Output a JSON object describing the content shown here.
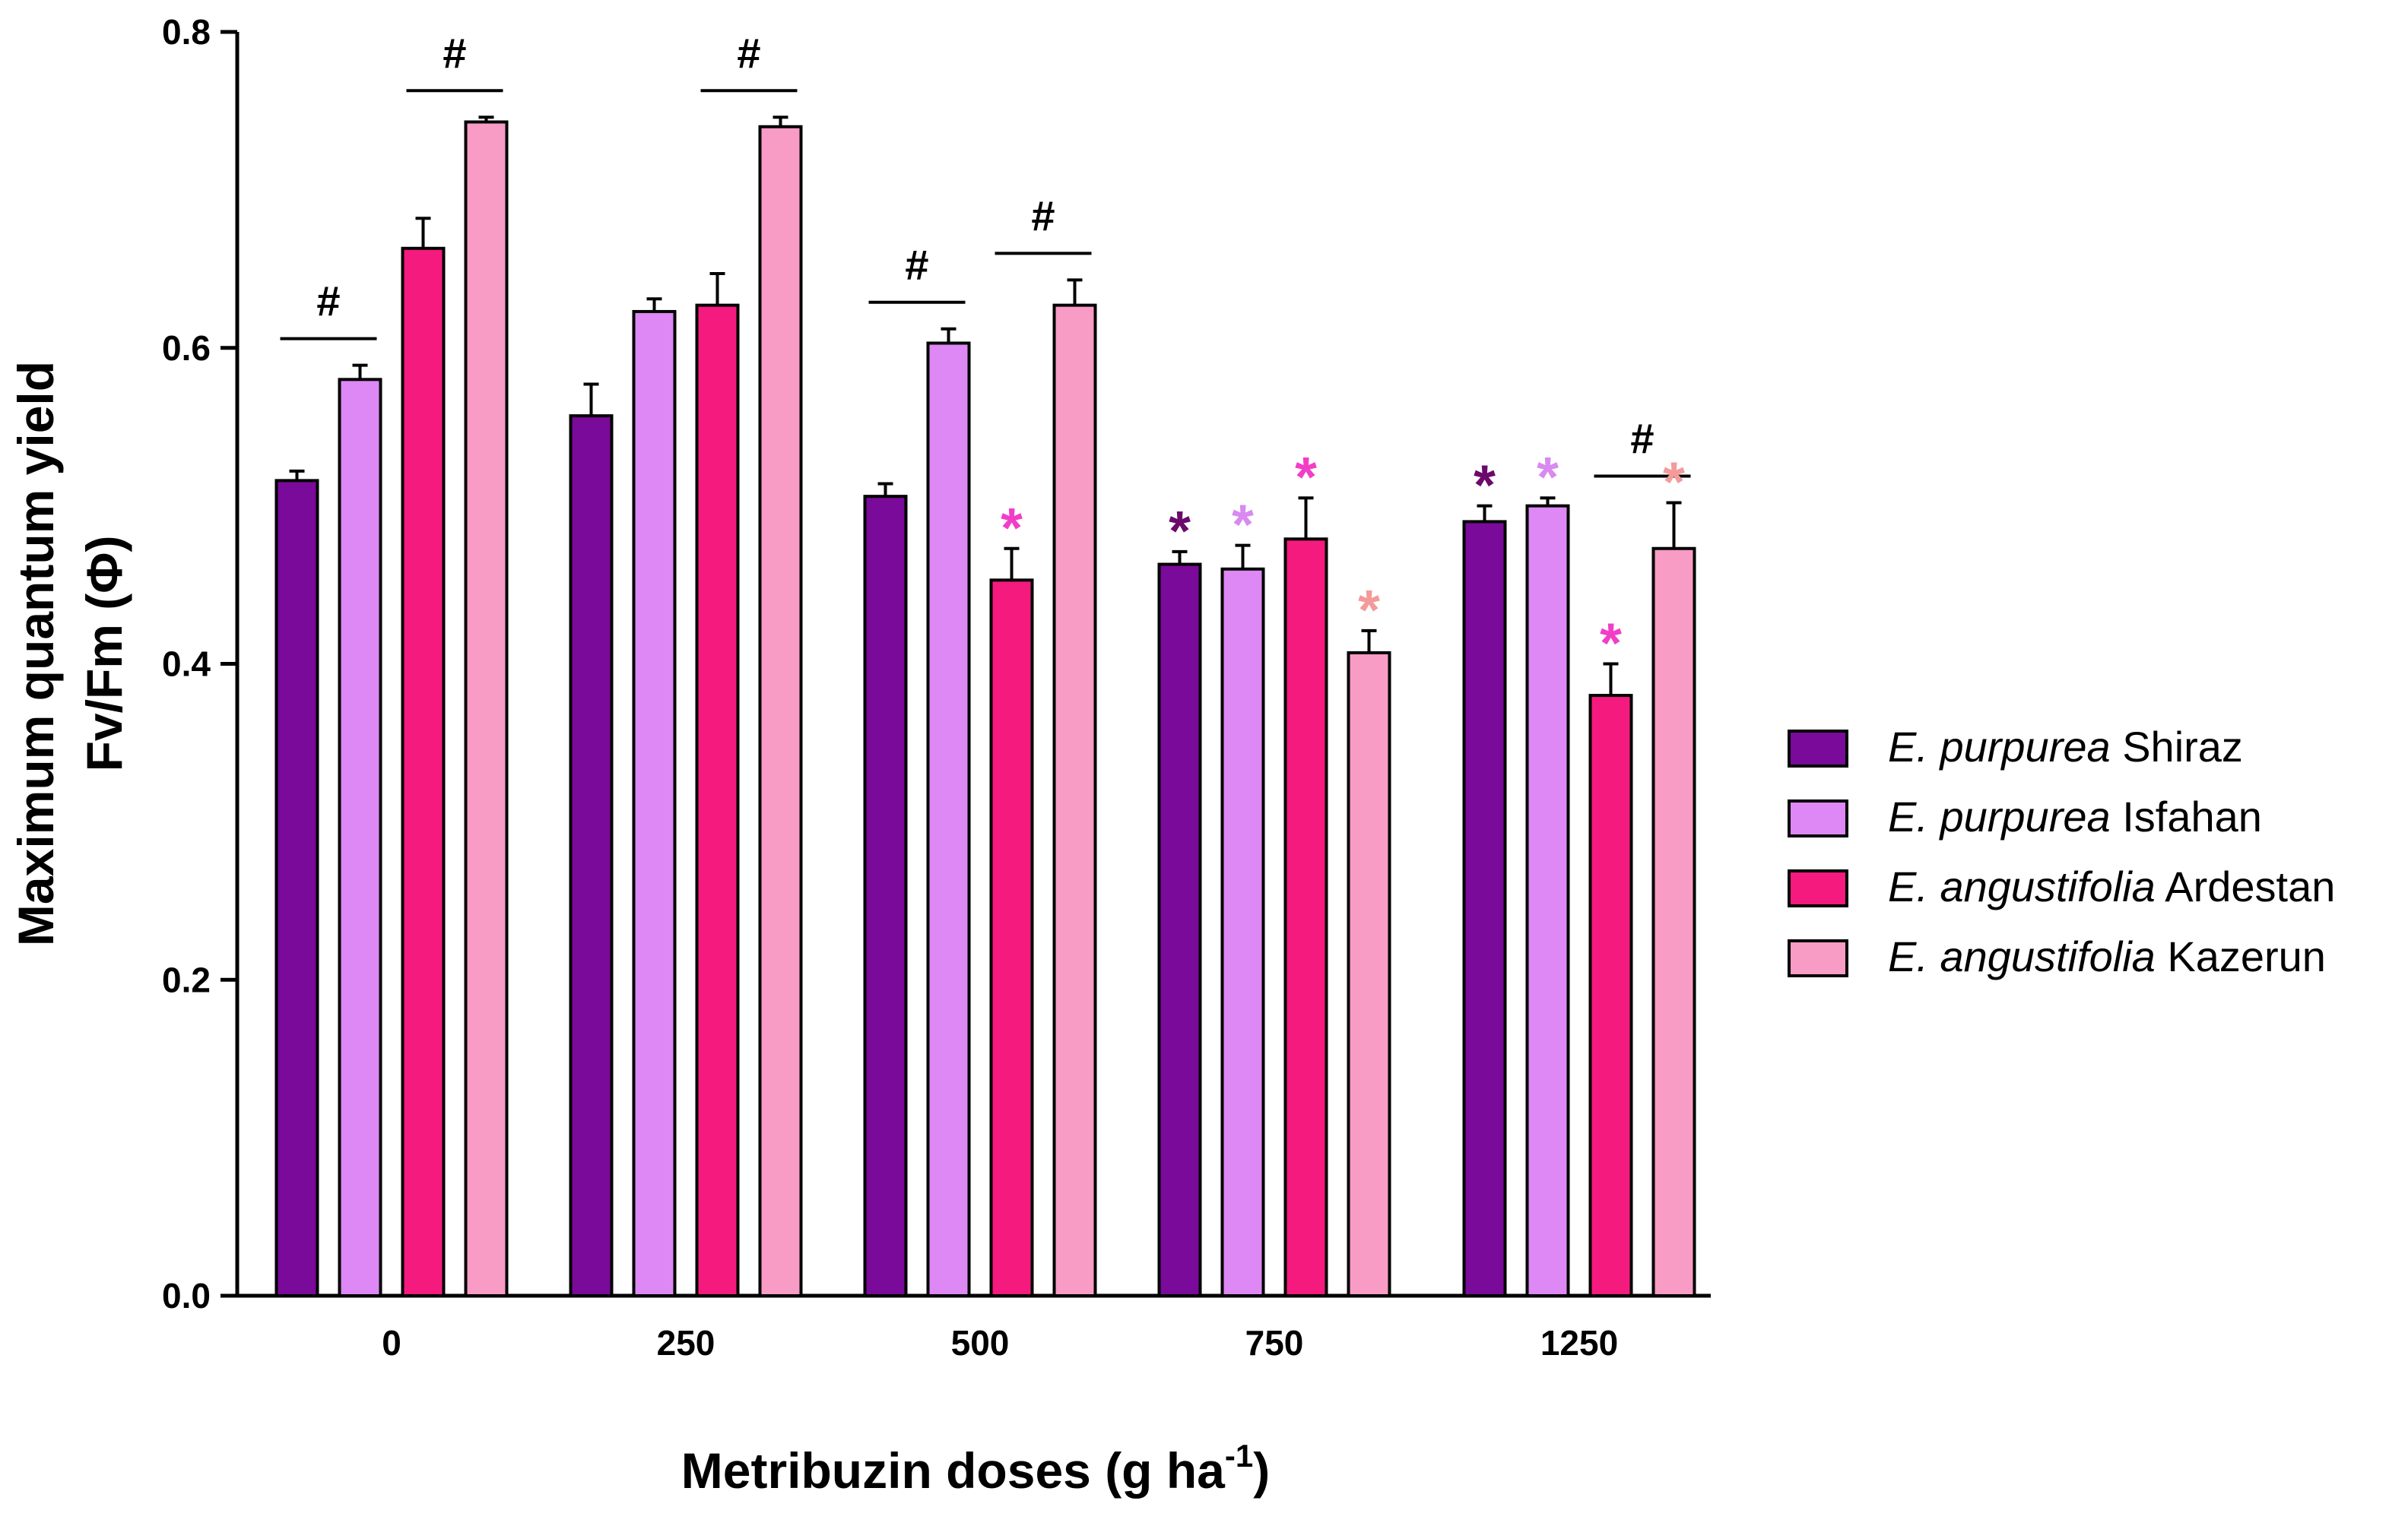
{
  "chart_data": {
    "type": "bar",
    "title": "",
    "xlabel": "Metribuzin doses (g ha",
    "xlabel_superscript": "-1",
    "xlabel_close": ")",
    "ylabel_line1": "Maximum quantum yield",
    "ylabel_line2": "Fv/Fm (Φ)",
    "ylim": [
      0,
      0.8
    ],
    "yticks": [
      "0.0",
      "0.2",
      "0.4",
      "0.6",
      "0.8"
    ],
    "categories": [
      "0",
      "250",
      "500",
      "750",
      "1250"
    ],
    "series": [
      {
        "name_italic": "E. purpurea",
        "name_rest": " Shiraz",
        "color": "#7a0a99",
        "values": [
          0.516,
          0.557,
          0.506,
          0.463,
          0.49
        ],
        "errors": [
          0.006,
          0.02,
          0.008,
          0.008,
          0.01
        ]
      },
      {
        "name_italic": "E. purpurea",
        "name_rest": " Isfahan",
        "color": "#dd88f4",
        "values": [
          0.58,
          0.623,
          0.603,
          0.46,
          0.5
        ],
        "errors": [
          0.009,
          0.008,
          0.009,
          0.015,
          0.005
        ]
      },
      {
        "name_italic": "E. angustifolia",
        "name_rest": " Ardestan",
        "color": "#f41a7e",
        "values": [
          0.663,
          0.627,
          0.453,
          0.479,
          0.38
        ],
        "errors": [
          0.019,
          0.02,
          0.02,
          0.026,
          0.02
        ]
      },
      {
        "name_italic": "E. angustifolia",
        "name_rest": " Kazerun",
        "color": "#f89bc5",
        "values": [
          0.743,
          0.74,
          0.627,
          0.407,
          0.473
        ],
        "errors": [
          0.003,
          0.006,
          0.016,
          0.014,
          0.029
        ]
      }
    ],
    "hash_marks": [
      {
        "category": 0,
        "between": [
          0,
          1
        ],
        "label": "#"
      },
      {
        "category": 0,
        "between": [
          2,
          3
        ],
        "label": "#"
      },
      {
        "category": 1,
        "between": [
          2,
          3
        ],
        "label": "#"
      },
      {
        "category": 2,
        "between": [
          0,
          1
        ],
        "label": "#"
      },
      {
        "category": 2,
        "between": [
          2,
          3
        ],
        "label": "#"
      },
      {
        "category": 4,
        "between": [
          2,
          3
        ],
        "label": "#"
      }
    ],
    "asterisks": [
      {
        "category": 2,
        "series": 2,
        "label": "*",
        "color": "#f23ec7"
      },
      {
        "category": 3,
        "series": 0,
        "label": "*",
        "color": "#6b0a6b"
      },
      {
        "category": 3,
        "series": 1,
        "label": "*",
        "color": "#d88af0"
      },
      {
        "category": 3,
        "series": 2,
        "label": "*",
        "color": "#f23ec7"
      },
      {
        "category": 3,
        "series": 3,
        "label": "*",
        "color": "#f49a9a"
      },
      {
        "category": 4,
        "series": 0,
        "label": "*",
        "color": "#6b0a6b"
      },
      {
        "category": 4,
        "series": 1,
        "label": "*",
        "color": "#d88af0"
      },
      {
        "category": 4,
        "series": 2,
        "label": "*",
        "color": "#f23ec7"
      },
      {
        "category": 4,
        "series": 3,
        "label": "*",
        "color": "#f49a9a"
      }
    ],
    "legend_position": "right",
    "grid": false
  }
}
